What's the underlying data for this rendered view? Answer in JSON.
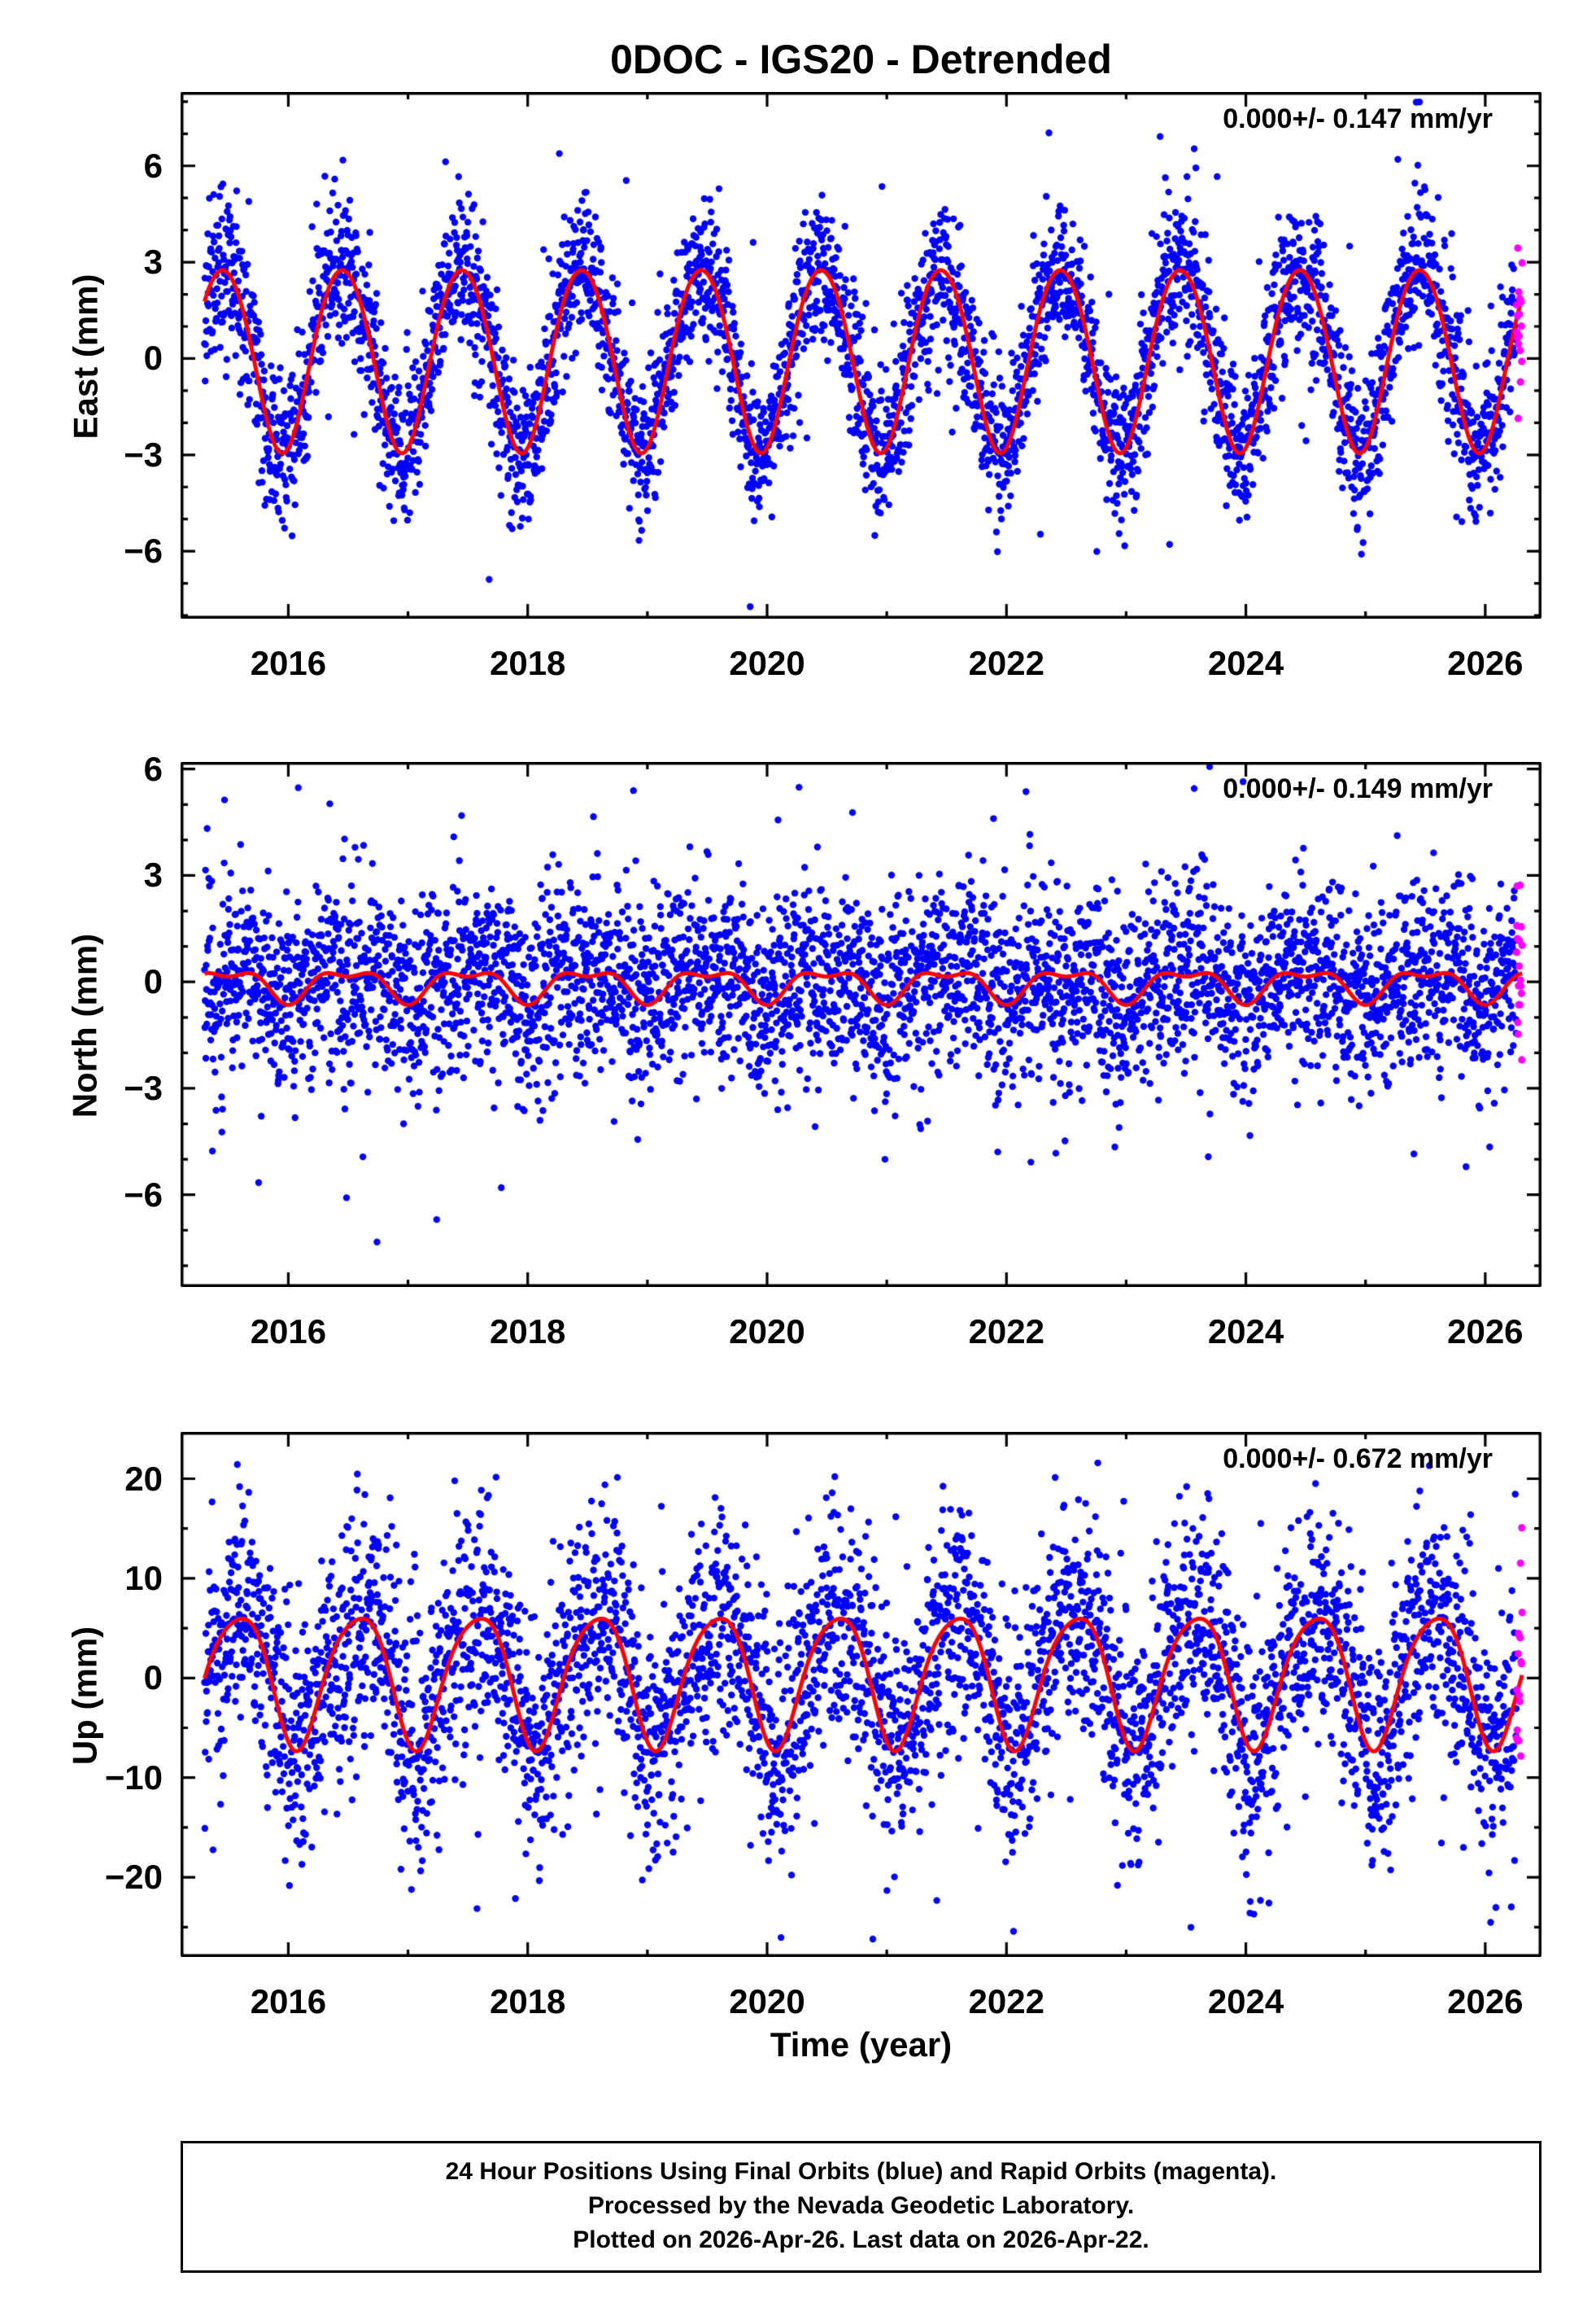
{
  "title": "0DOC - IGS20 - Detrended",
  "station": "0DOC",
  "reference_frame": "IGS20",
  "solution_type": "Detrended",
  "footer": {
    "lines": [
      "24 Hour Positions Using Final Orbits (blue) and Rapid Orbits (magenta).",
      "Processed by the Nevada Geodetic Laboratory.",
      "Plotted on 2026-Apr-26. Last data on 2026-Apr-22."
    ]
  },
  "colors": {
    "final_orbits": "#0000ff",
    "rapid_orbits": "#ff00ff",
    "model_curve": "#ff0000",
    "axis": "#000000",
    "background": "#ffffff"
  },
  "chart_data": {
    "type": "scatter",
    "title": "0DOC - IGS20 - Detrended",
    "xlabel": "Time (year)",
    "x_range": [
      2015.1,
      2026.47
    ],
    "x_ticks": [
      2016,
      2018,
      2020,
      2022,
      2024,
      2026
    ],
    "x_tick_labels": [
      "2016",
      "2018",
      "2020",
      "2022",
      "2024",
      "2026"
    ],
    "data_start": 2015.3,
    "data_end": 2026.31,
    "rapid_start": 2026.26,
    "points_per_year": 365,
    "panels": [
      {
        "id": "east",
        "ylabel": "East (mm)",
        "annotation": "0.000+/- 0.147 mm/yr",
        "rate_mm_per_yr": 0.0,
        "rate_uncertainty_mm_per_yr": 0.147,
        "y_range": [
          -8.1,
          8.3
        ],
        "y_ticks": [
          -6,
          -3,
          0,
          3,
          6
        ],
        "y_tick_labels": [
          "−6",
          "−3",
          "0",
          "3",
          "6"
        ],
        "y_minor_step": 1,
        "seasonal": {
          "annual_amplitude_mm": 2.85,
          "annual_peak": 0.45,
          "semiannual_amplitude_mm": 0.15,
          "semiannual_peak": 0.2,
          "offset_mm": 0.05
        },
        "scatter_sigma_mm": 1.15
      },
      {
        "id": "north",
        "ylabel": "North (mm)",
        "annotation": "0.000+/- 0.149 mm/yr",
        "rate_mm_per_yr": 0.0,
        "rate_uncertainty_mm_per_yr": 0.149,
        "y_range": [
          -8.6,
          6.2
        ],
        "y_ticks": [
          -6,
          -3,
          0,
          3,
          6
        ],
        "y_tick_labels": [
          "−6",
          "−3",
          "0",
          "3",
          "6"
        ],
        "y_minor_step": 1,
        "seasonal": {
          "annual_amplitude_mm": 0.4,
          "annual_peak": 0.5,
          "semiannual_amplitude_mm": 0.2,
          "semiannual_peak": 0.25,
          "offset_mm": -0.05
        },
        "scatter_sigma_mm": 1.3
      },
      {
        "id": "up",
        "ylabel": "Up (mm)",
        "annotation": "0.000+/- 0.672 mm/yr",
        "rate_mm_per_yr": 0.0,
        "rate_uncertainty_mm_per_yr": 0.672,
        "y_range": [
          -28.0,
          24.7
        ],
        "y_ticks": [
          -20,
          -10,
          0,
          10,
          20
        ],
        "y_tick_labels": [
          "−20",
          "−10",
          "0",
          "10",
          "20"
        ],
        "y_minor_step": 5,
        "seasonal": {
          "annual_amplitude_mm": 6.6,
          "annual_peak": 0.58,
          "semiannual_amplitude_mm": 1.0,
          "semiannual_peak": 0.3,
          "offset_mm": 0.2
        },
        "scatter_sigma_mm": 5.6
      }
    ]
  }
}
